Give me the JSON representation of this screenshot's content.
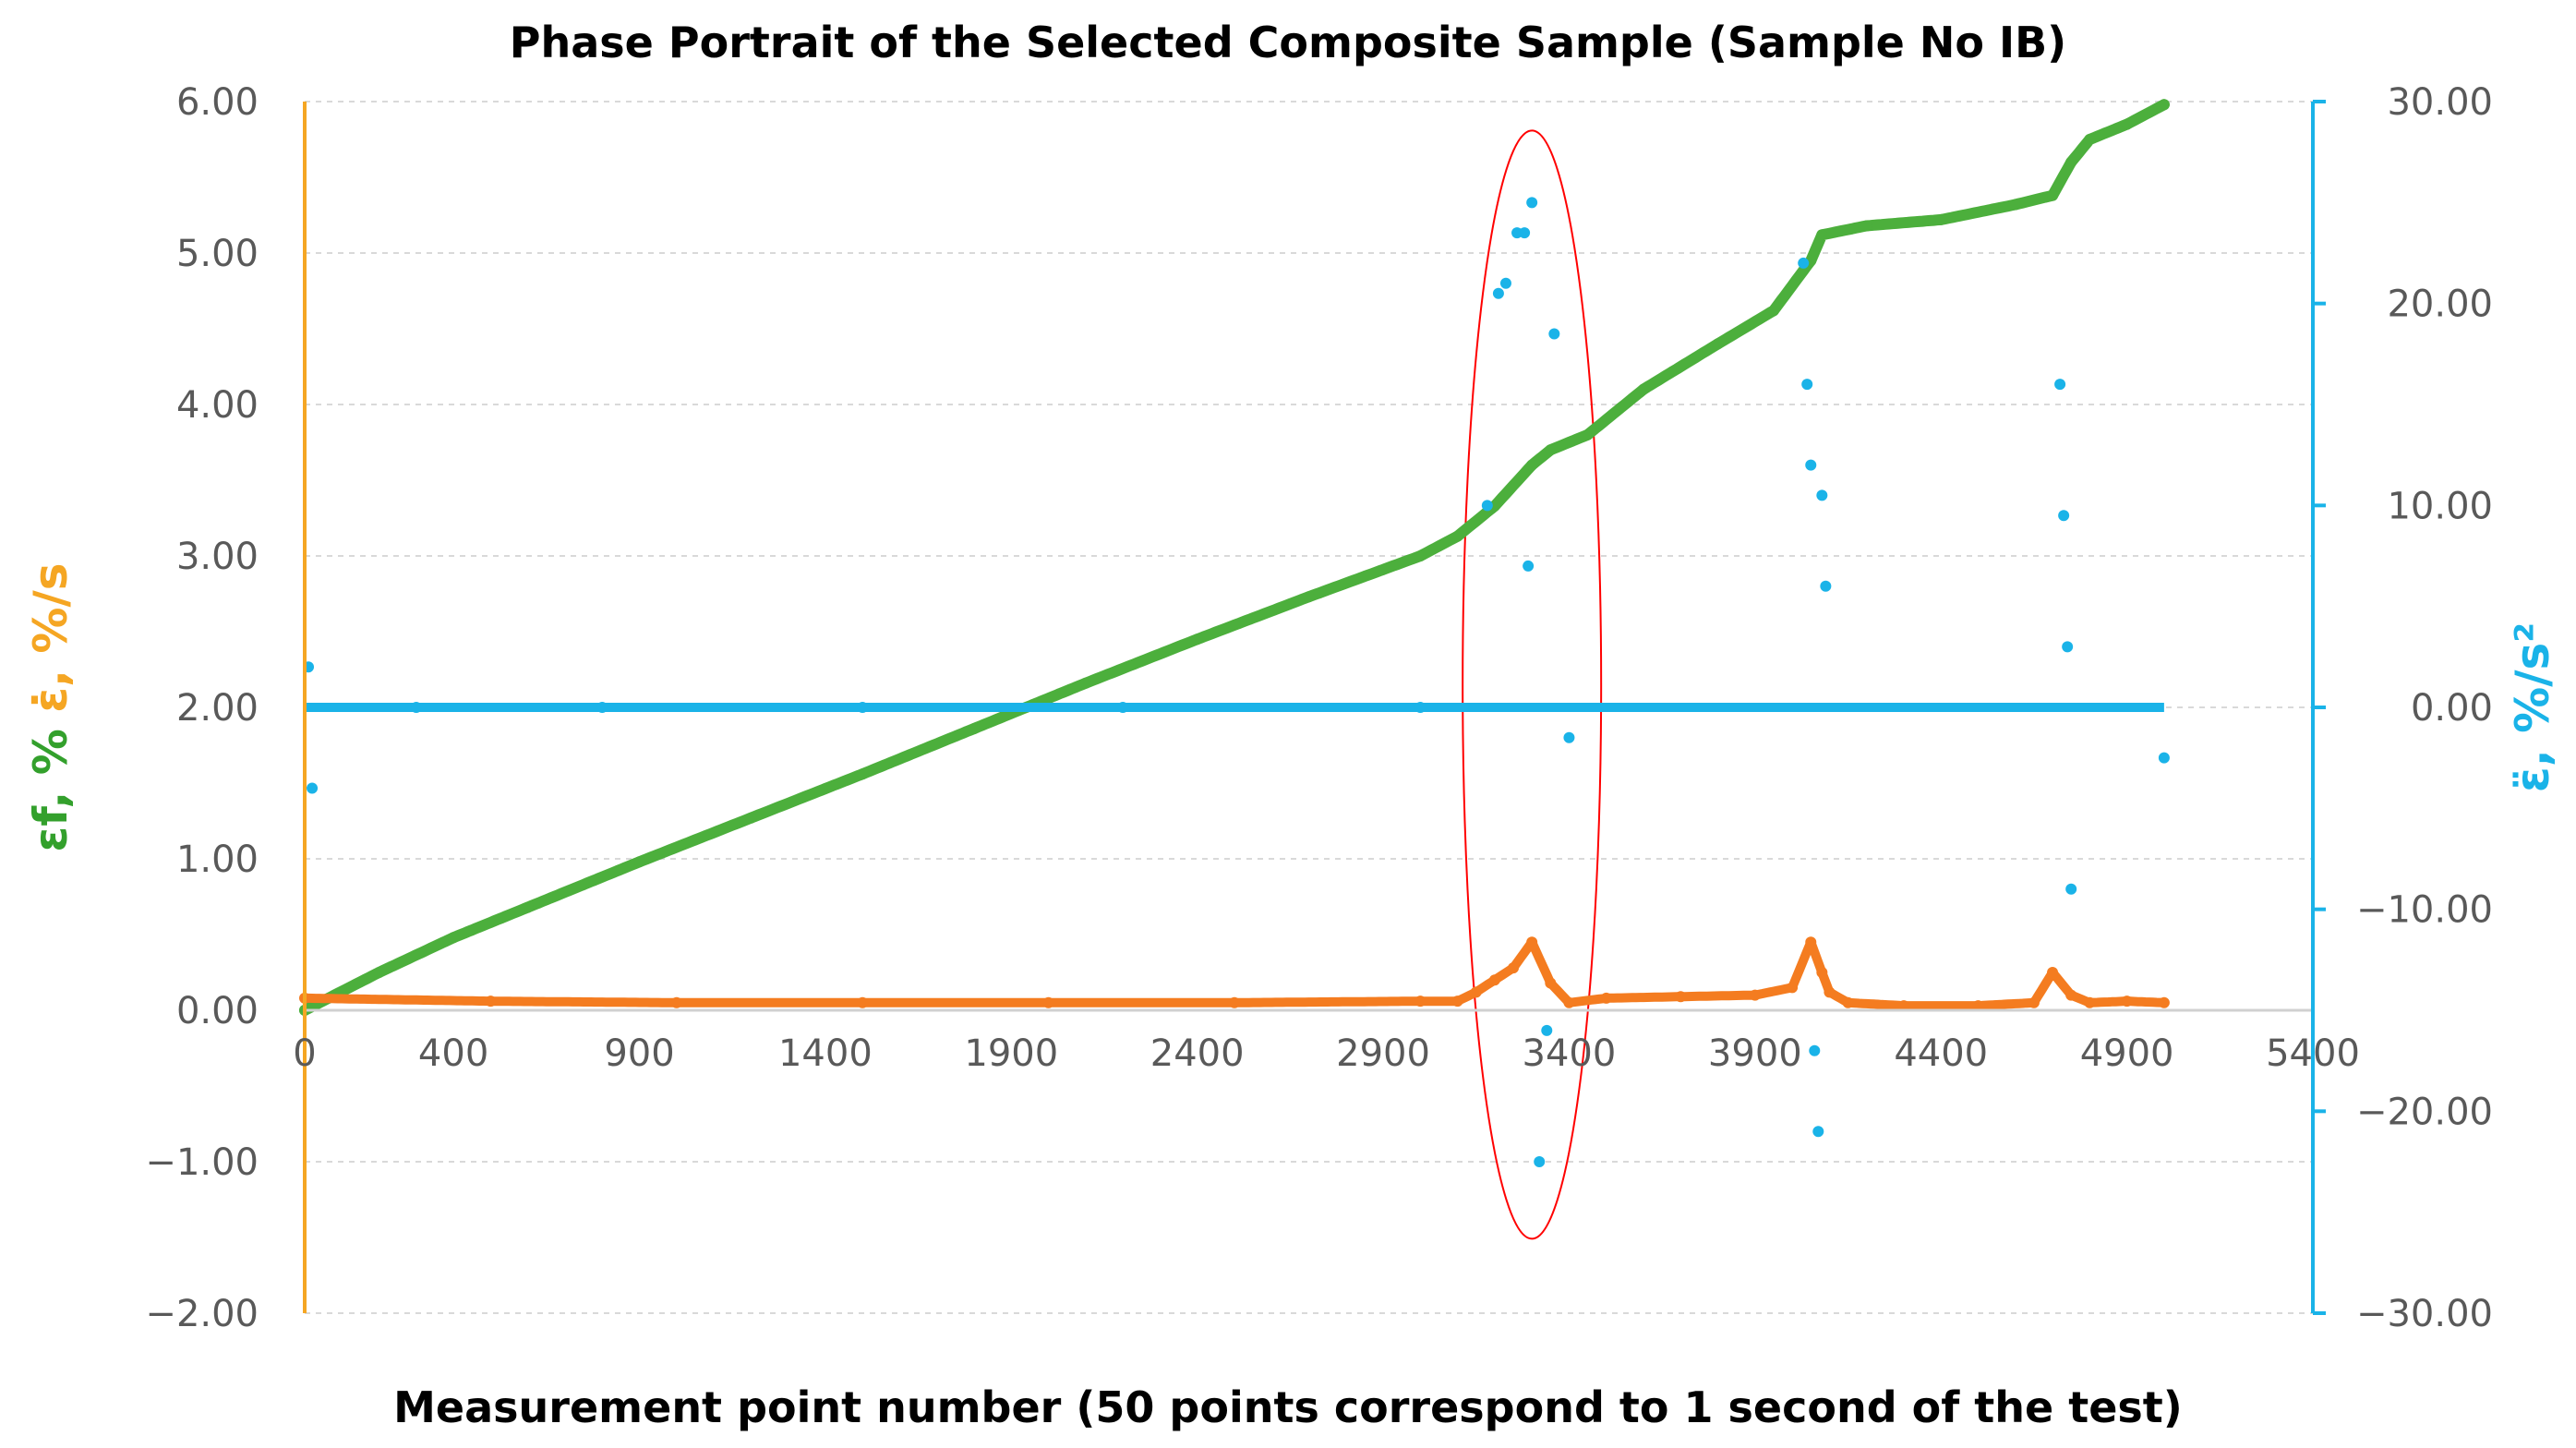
{
  "chart_data": {
    "type": "scatter",
    "title": "Phase Portrait of the Selected Composite Sample (Sample No IB)",
    "xlabel": "Measurement point number (50 points correspond to 1 second of the test)",
    "ylabel_left": [
      {
        "text": "εf, %",
        "color": "#33a02c"
      },
      {
        "text": "ε̇, %/s",
        "color": "#f5a623"
      }
    ],
    "ylabel_right": {
      "text": "ε̈, %/s²",
      "color": "#1ab3e8"
    },
    "xlim": [
      0,
      5400
    ],
    "x_ticks": [
      "0",
      "400",
      "900",
      "1400",
      "1900",
      "2400",
      "2900",
      "3400",
      "3900",
      "4400",
      "4900",
      "5400"
    ],
    "x_tick_values": [
      0,
      400,
      900,
      1400,
      1900,
      2400,
      2900,
      3400,
      3900,
      4400,
      4900,
      5400
    ],
    "ylim_left": [
      -2,
      6
    ],
    "y_ticks_left": [
      "6.00",
      "5.00",
      "4.00",
      "3.00",
      "2.00",
      "1.00",
      "0.00",
      "−1.00",
      "−2.00"
    ],
    "ylim_right": [
      -30,
      30
    ],
    "y_ticks_right": [
      "30.00",
      "20.00",
      "10.00",
      "0.00",
      "−10.00",
      "−20.00",
      "−30.00"
    ],
    "grid": true,
    "colors": {
      "strain": "#4caf3c",
      "rate": "#f47c20",
      "accel": "#1ab3e8",
      "left_axis": "#f5a623",
      "right_axis": "#1ab3e8",
      "highlight": "#ff0000",
      "grid": "#d9d9d9"
    },
    "series": [
      {
        "name": "εf, %",
        "axis": "left",
        "x": [
          0,
          200,
          400,
          600,
          900,
          1200,
          1500,
          1800,
          2100,
          2400,
          2700,
          3000,
          3100,
          3200,
          3300,
          3350,
          3450,
          3600,
          3800,
          3950,
          4050,
          4080,
          4200,
          4400,
          4600,
          4700,
          4750,
          4800,
          4900,
          5000
        ],
        "y": [
          0.0,
          0.25,
          0.48,
          0.68,
          0.98,
          1.27,
          1.56,
          1.86,
          2.16,
          2.45,
          2.73,
          3.0,
          3.13,
          3.33,
          3.6,
          3.7,
          3.8,
          4.1,
          4.4,
          4.62,
          4.95,
          5.12,
          5.18,
          5.22,
          5.32,
          5.38,
          5.6,
          5.75,
          5.85,
          5.98
        ]
      },
      {
        "name": "ε̇, %/s",
        "axis": "left",
        "x": [
          0,
          500,
          1000,
          1500,
          2000,
          2500,
          3000,
          3100,
          3150,
          3200,
          3250,
          3300,
          3350,
          3400,
          3500,
          3700,
          3900,
          4000,
          4050,
          4080,
          4100,
          4150,
          4300,
          4500,
          4650,
          4700,
          4750,
          4800,
          4900,
          5000
        ],
        "y": [
          0.08,
          0.06,
          0.05,
          0.05,
          0.05,
          0.05,
          0.06,
          0.06,
          0.12,
          0.2,
          0.28,
          0.45,
          0.18,
          0.05,
          0.08,
          0.09,
          0.1,
          0.15,
          0.45,
          0.25,
          0.12,
          0.05,
          0.03,
          0.03,
          0.05,
          0.25,
          0.1,
          0.05,
          0.06,
          0.05
        ]
      },
      {
        "name": "ε̈, %/s²",
        "axis": "right",
        "x": [
          10,
          20,
          300,
          800,
          1500,
          2200,
          3000,
          3180,
          3210,
          3230,
          3260,
          3280,
          3290,
          3300,
          3320,
          3340,
          3360,
          3400,
          4030,
          4040,
          4050,
          4060,
          4070,
          4080,
          4090,
          4720,
          4730,
          4740,
          4750,
          5000
        ],
        "y": [
          2.0,
          -4.0,
          0.0,
          0.0,
          0.0,
          0.0,
          0.0,
          10.0,
          20.5,
          21.0,
          23.5,
          23.5,
          7.0,
          25.0,
          -22.5,
          -16.0,
          18.5,
          -1.5,
          22.0,
          16.0,
          12.0,
          -17.0,
          -21.0,
          10.5,
          6.0,
          16.0,
          9.5,
          3.0,
          -9.0,
          -2.5
        ]
      }
    ],
    "annotation": {
      "shape": "ellipse",
      "color": "#ff0000",
      "x_center": 3300,
      "y_center_left": 2.15
    }
  }
}
